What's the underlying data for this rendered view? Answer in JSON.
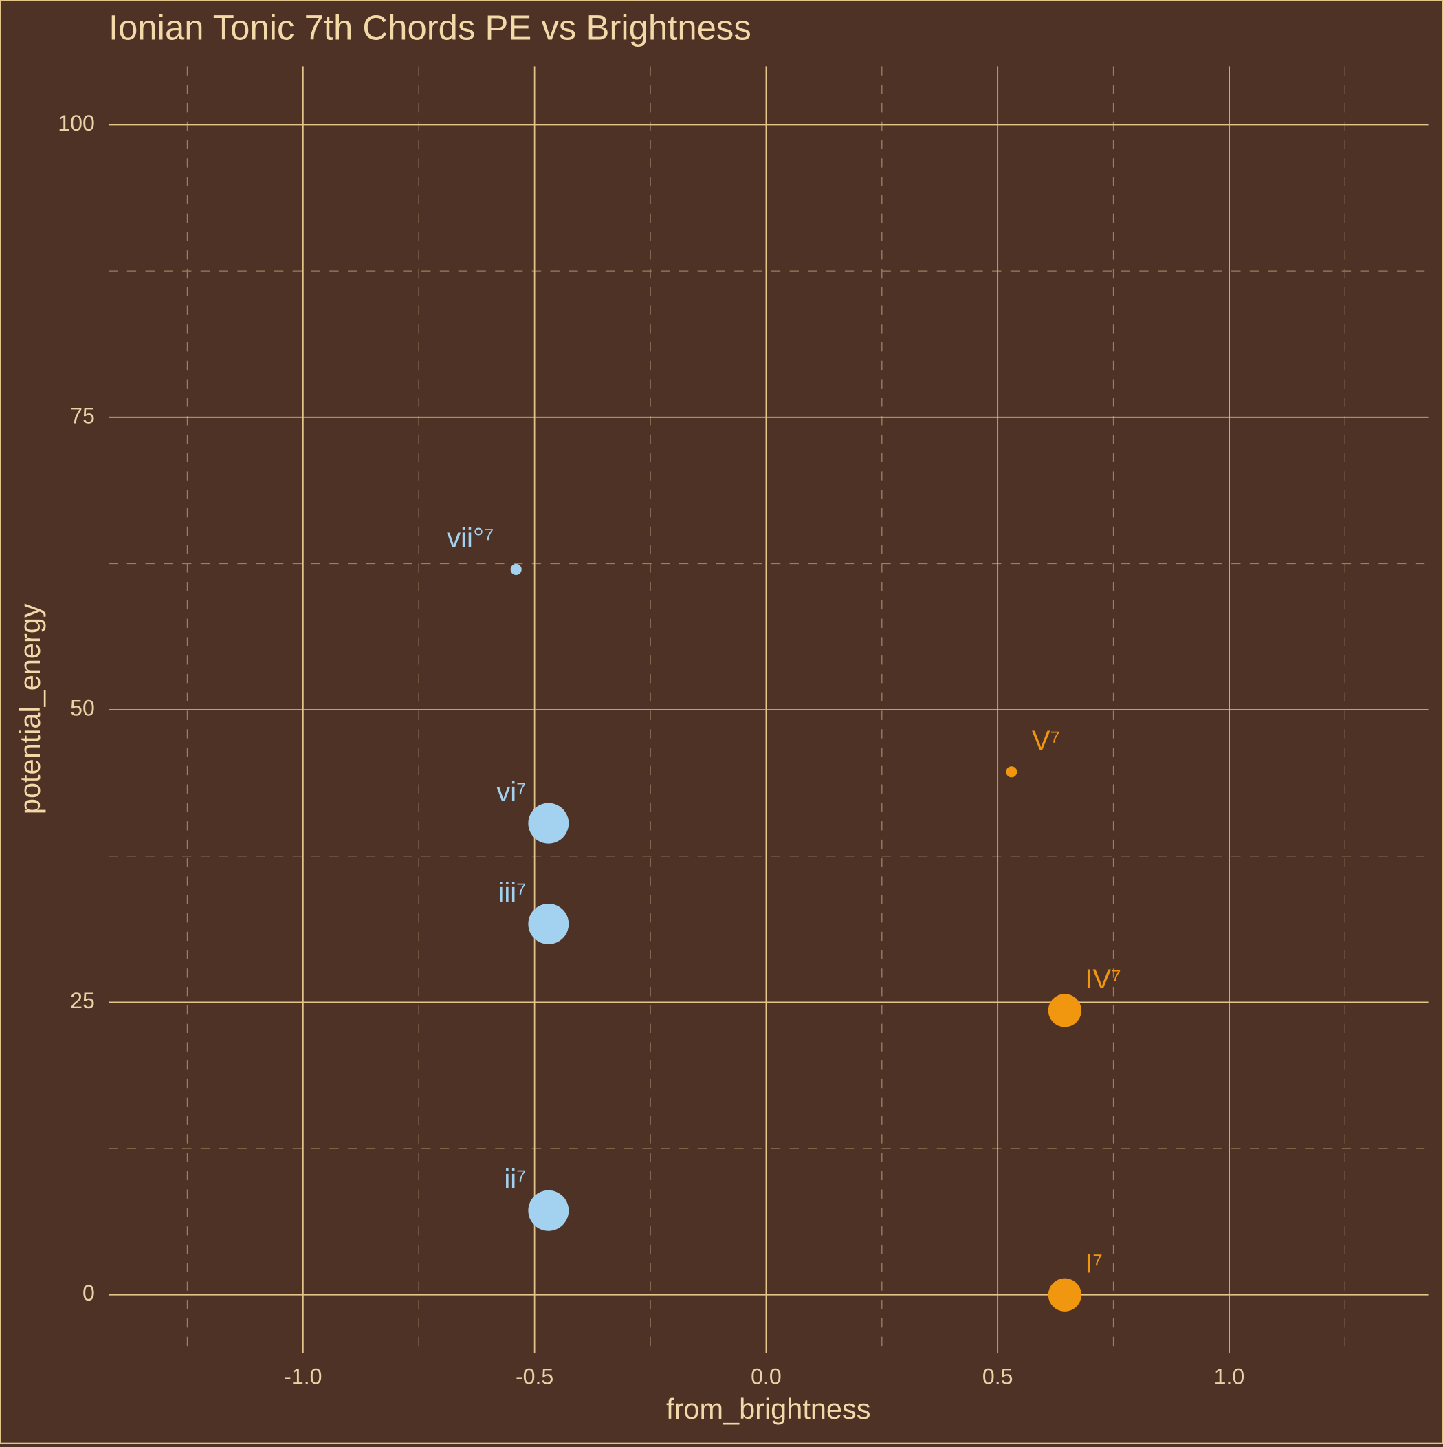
{
  "chart_data": {
    "type": "scatter",
    "title": "Ionian Tonic 7th Chords PE vs Brightness",
    "x_label": "from_brightness",
    "y_label": "potential_energy",
    "series": [
      {
        "color": "#a3d2f0",
        "labels": [
          "vii°⁷",
          "vi⁷",
          "iii⁷",
          "ii⁷"
        ],
        "x": [
          -0.54,
          -0.47,
          -0.47,
          -0.47
        ],
        "values": [
          62,
          40.3,
          31.7,
          7.2
        ],
        "sizes": [
          1,
          5,
          5,
          5
        ]
      },
      {
        "color": "#f0960f",
        "labels": [
          "V⁷",
          "IV⁷",
          "I⁷"
        ],
        "x": [
          0.53,
          0.645,
          0.645
        ],
        "values": [
          44.7,
          24.3,
          0
        ],
        "sizes": [
          1,
          4,
          4
        ]
      }
    ],
    "xlim": [
      -1.42,
      1.43
    ],
    "ylim": [
      -5,
      105
    ],
    "xticks": [
      {
        "value": -1,
        "label": "-1.0"
      },
      -0.5,
      {
        "value": 0,
        "label": "0.0"
      },
      0.5,
      {
        "value": 1,
        "label": "1.0"
      }
    ],
    "yticks": [
      0,
      25,
      50,
      75,
      100
    ],
    "xminor": [
      -1.25,
      -0.75,
      -0.25,
      0.25,
      0.75,
      1.25
    ],
    "yminor": [
      12.5,
      37.5,
      62.5,
      87.5
    ],
    "grid": true
  }
}
